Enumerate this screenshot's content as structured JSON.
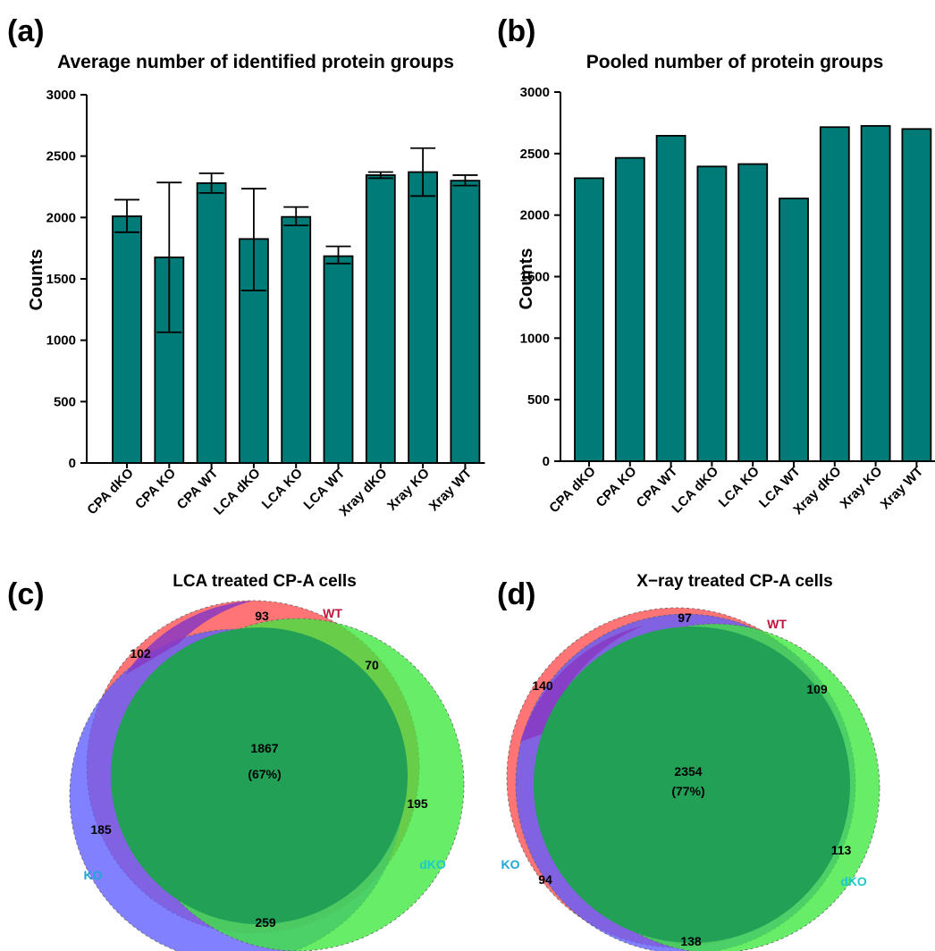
{
  "panel_labels": {
    "a": "(a)",
    "b": "(b)",
    "c": "(c)",
    "d": "(d)"
  },
  "colors": {
    "bar": "#007b77",
    "wt": "#ff4d4d",
    "ko": "#5d5dff",
    "dko": "#3de83d",
    "overlap_all": "#21a056",
    "overlap_wt_ko": "#8a3ac2",
    "wt_label": "#c0143c",
    "ko_label": "#1fa5d8",
    "dko_label": "#1fc9c9"
  },
  "chart_data": [
    {
      "type": "bar",
      "title": "Average number of identified protein groups",
      "xlabel": "",
      "ylabel": "Counts",
      "ylim": [
        0,
        3000
      ],
      "yticks": [
        "0",
        "500",
        "1000",
        "1500",
        "2000",
        "2500",
        "3000"
      ],
      "categories": [
        "CPA dKO",
        "CPA KO",
        "CPA WT",
        "LCA dKO",
        "LCA KO",
        "LCA WT",
        "Xray dKO",
        "Xray KO",
        "Xray WT"
      ],
      "values": [
        2010,
        1675,
        2280,
        1825,
        2005,
        1685,
        2345,
        2370,
        2300
      ],
      "error_low": [
        1880,
        1065,
        2200,
        1405,
        1935,
        1625,
        2320,
        2175,
        2260
      ],
      "error_high": [
        2145,
        2285,
        2360,
        2235,
        2085,
        1765,
        2370,
        2565,
        2345
      ],
      "grid": false
    },
    {
      "type": "bar",
      "title": "Pooled number of protein groups",
      "xlabel": "",
      "ylabel": "Counts",
      "ylim": [
        0,
        3000
      ],
      "yticks": [
        "0",
        "500",
        "1000",
        "1500",
        "2000",
        "2500",
        "3000"
      ],
      "categories": [
        "CPA dKO",
        "CPA KO",
        "CPA WT",
        "LCA dKO",
        "LCA KO",
        "LCA WT",
        "Xray dKO",
        "Xray KO",
        "Xray WT"
      ],
      "values": [
        2300,
        2465,
        2645,
        2395,
        2415,
        2135,
        2715,
        2725,
        2700
      ],
      "grid": false
    }
  ],
  "venn": [
    {
      "title": "LCA treated CP-A cells",
      "sets": {
        "wt": "WT",
        "ko": "KO",
        "dko": "dKO"
      },
      "regions": {
        "all": "1867",
        "all_pct": "(67%)",
        "wt_only": "93",
        "wt_ko": "102",
        "wt_dko": "70",
        "dko_only": "195",
        "ko_only": "185",
        "ko_dko": "259"
      }
    },
    {
      "title": "X−ray treated CP-A cells",
      "sets": {
        "wt": "WT",
        "ko": "KO",
        "dko": "dKO"
      },
      "regions": {
        "all": "2354",
        "all_pct": "(77%)",
        "wt_only": "97",
        "wt_ko": "140",
        "wt_dko": "109",
        "dko_only": "113",
        "ko_only": "94",
        "ko_dko": "138"
      }
    }
  ]
}
